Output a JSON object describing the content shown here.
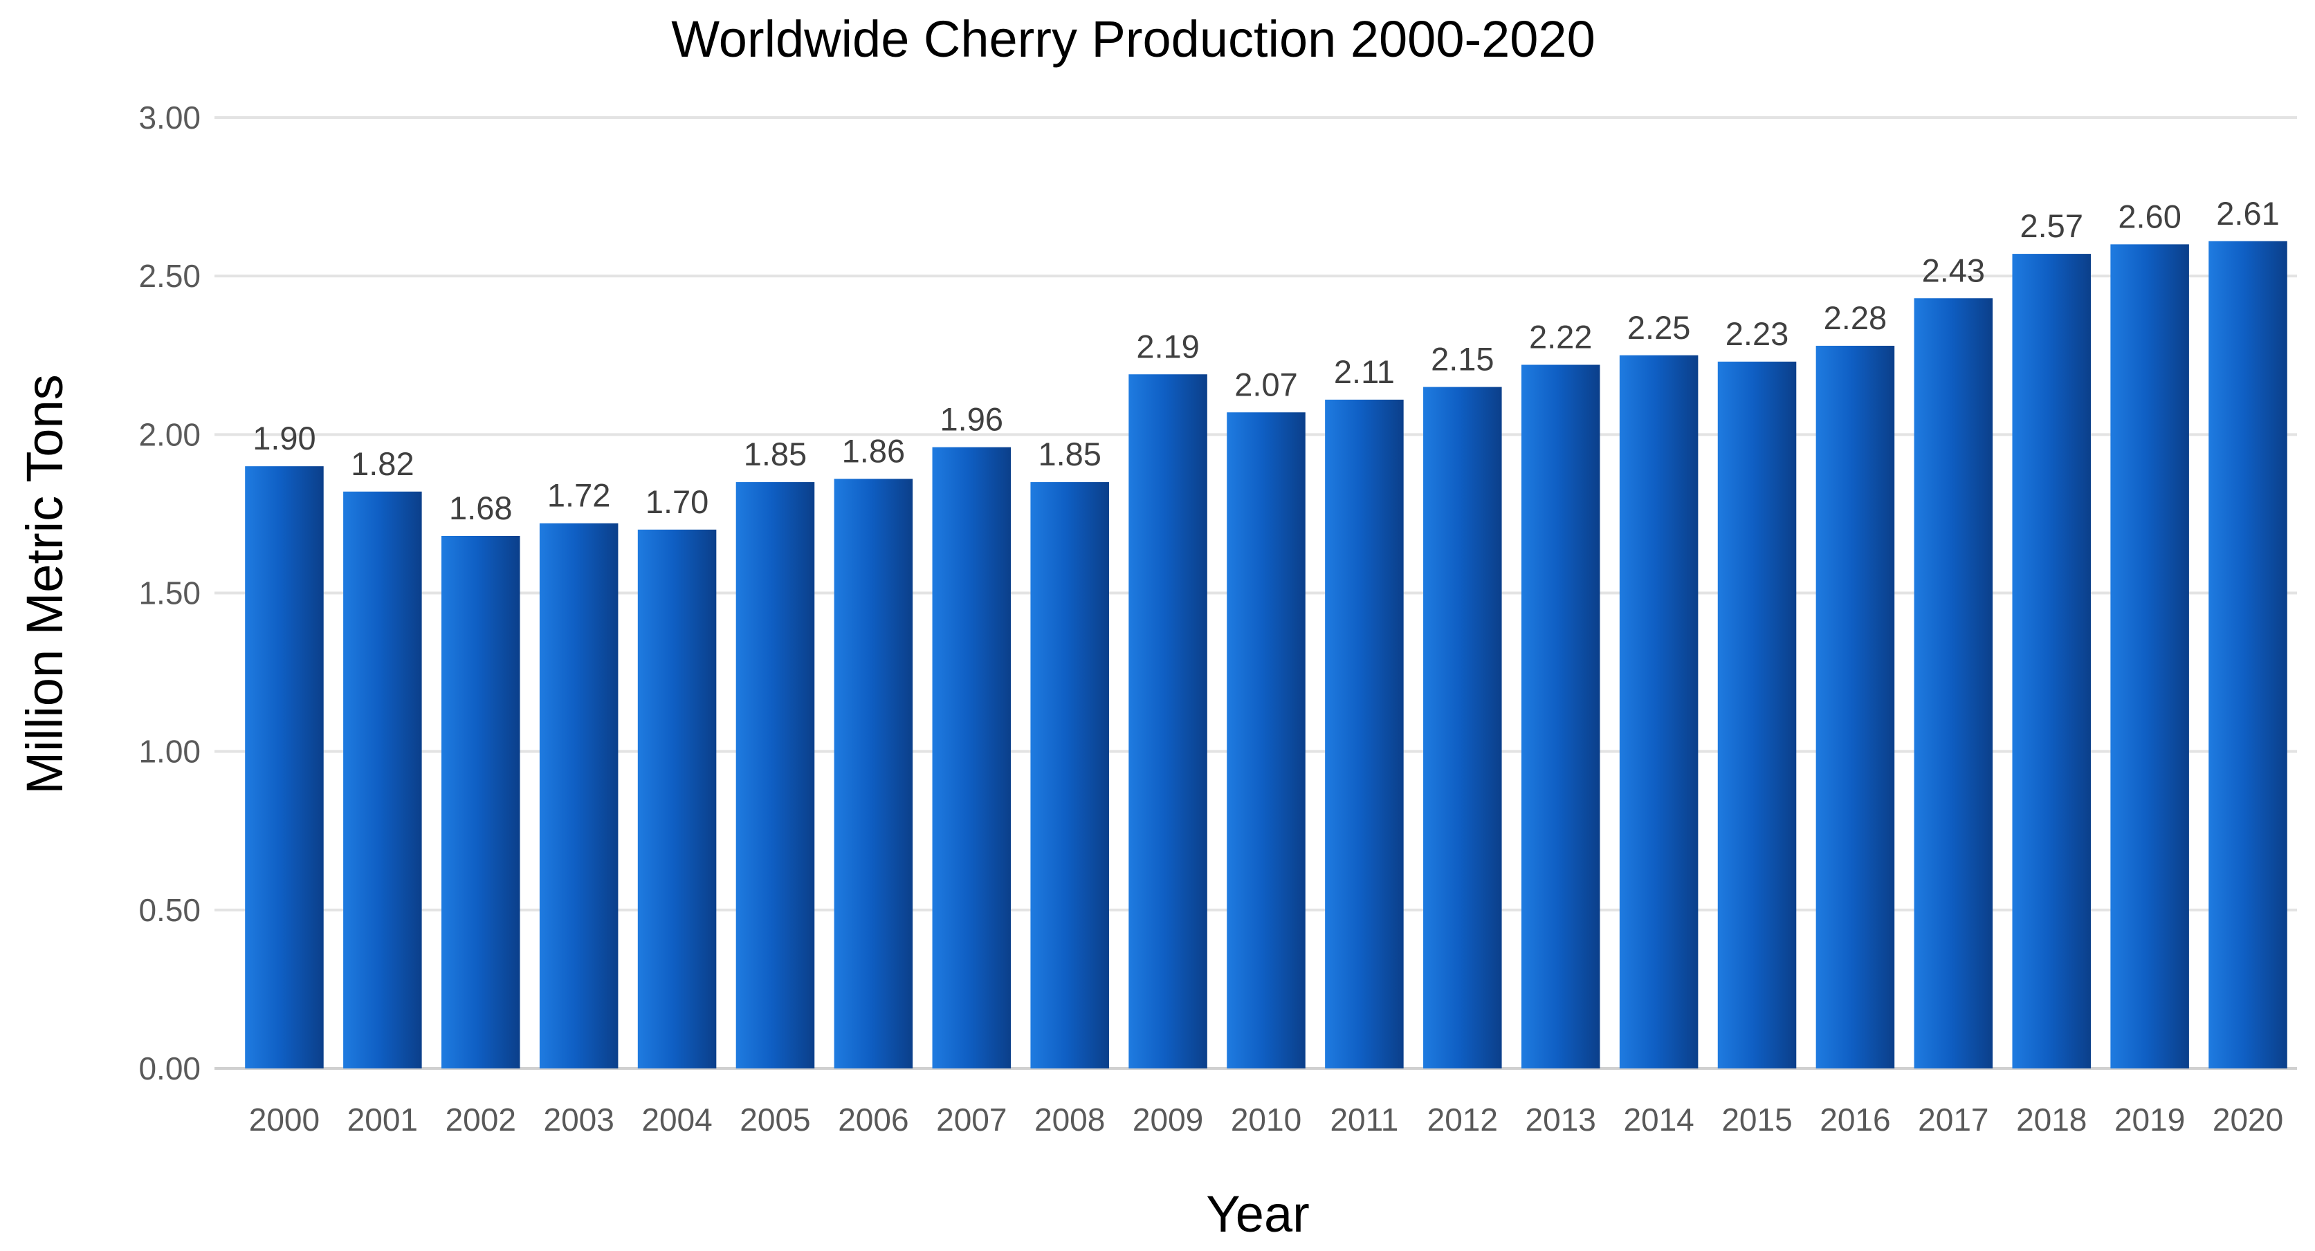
{
  "chart_data": {
    "type": "bar",
    "title": "Worldwide Cherry Production 2000-2020",
    "xlabel": "Year",
    "ylabel": "Million Metric Tons",
    "categories": [
      "2000",
      "2001",
      "2002",
      "2003",
      "2004",
      "2005",
      "2006",
      "2007",
      "2008",
      "2009",
      "2010",
      "2011",
      "2012",
      "2013",
      "2014",
      "2015",
      "2016",
      "2017",
      "2018",
      "2019",
      "2020"
    ],
    "values": [
      1.9,
      1.82,
      1.68,
      1.72,
      1.7,
      1.85,
      1.86,
      1.96,
      1.85,
      2.19,
      2.07,
      2.11,
      2.15,
      2.22,
      2.25,
      2.23,
      2.28,
      2.43,
      2.57,
      2.6,
      2.61
    ],
    "data_labels": [
      "1.90",
      "1.82",
      "1.68",
      "1.72",
      "1.70",
      "1.85",
      "1.86",
      "1.96",
      "1.85",
      "2.19",
      "2.07",
      "2.11",
      "2.15",
      "2.22",
      "2.25",
      "2.23",
      "2.28",
      "2.43",
      "2.57",
      "2.60",
      "2.61"
    ],
    "y_ticks": [
      0,
      0.5,
      1,
      1.5,
      2,
      2.5,
      3
    ],
    "y_tick_labels": [
      "0.00",
      "0.50",
      "1.00",
      "1.50",
      "2.00",
      "2.50",
      "3.00"
    ],
    "ylim": [
      0,
      3
    ],
    "grid": true,
    "legend": "none",
    "colors": {
      "bar_light": "#1f7be0",
      "bar_mid": "#0f5fc4",
      "bar_dark": "#0b3f8a",
      "grid": "#e3e3e3",
      "tick_text": "#595959",
      "label_text": "#404040"
    }
  }
}
